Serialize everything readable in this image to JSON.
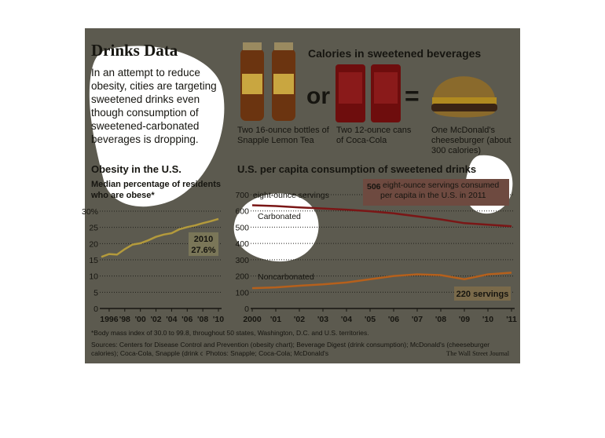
{
  "header": {
    "title": "Drinks Data",
    "intro": "In an attempt to reduce obesity, cities are targeting sweetened drinks even though consumption of sweetened-carbonated beverages is dropping."
  },
  "calories": {
    "title": "Calories in sweetened beverages",
    "or": "or",
    "equals": "=",
    "items": [
      {
        "caption": "Two 16-ounce bottles of Snapple Lemon Tea"
      },
      {
        "caption": "Two 12-ounce cans of Coca-Cola"
      },
      {
        "caption": "One McDonald's cheeseburger (about 300 calories)"
      }
    ]
  },
  "chart_data": [
    {
      "type": "line",
      "title": "Obesity in the U.S.",
      "subtitle": "Median percentage of residents who are obese*",
      "x": [
        1995,
        1996,
        1997,
        1998,
        1999,
        2000,
        2001,
        2002,
        2003,
        2004,
        2005,
        2006,
        2007,
        2008,
        2009,
        2010
      ],
      "series": [
        {
          "name": null,
          "color": "#b39a3c",
          "values": [
            15.9,
            16.8,
            16.6,
            18.3,
            19.7,
            20.1,
            21.0,
            22.1,
            22.8,
            23.2,
            24.4,
            25.1,
            25.6,
            26.3,
            26.9,
            27.6
          ]
        }
      ],
      "xlim": [
        1995,
        2010
      ],
      "xticks": [
        1996,
        {
          "value": 1998,
          "label": "'98"
        },
        {
          "value": 2000,
          "label": "'00"
        },
        {
          "value": 2002,
          "label": "'02"
        },
        {
          "value": 2004,
          "label": "'04"
        },
        {
          "value": 2006,
          "label": "'06"
        },
        {
          "value": 2008,
          "label": "'08"
        },
        {
          "value": 2010,
          "label": "'10"
        }
      ],
      "ylim": [
        0,
        30
      ],
      "yticks": [
        0,
        5,
        10,
        15,
        20,
        25,
        {
          "value": 30,
          "label": "30%"
        }
      ],
      "grid": true,
      "annotations": [
        "2010",
        "27.6%"
      ]
    },
    {
      "type": "line",
      "title": "U.S. per capita consumption of sweetened drinks",
      "y_unit": "eight-ounce servings",
      "x": [
        2000,
        2001,
        2002,
        2003,
        2004,
        2005,
        2006,
        2007,
        2008,
        2009,
        2010,
        2011
      ],
      "series": [
        {
          "name": "Carbonated",
          "color": "#7a1616",
          "values": [
            635,
            630,
            622,
            615,
            608,
            598,
            585,
            567,
            548,
            525,
            515,
            506
          ]
        },
        {
          "name": "Noncarbonated",
          "color": "#b5601c",
          "values": [
            125,
            130,
            140,
            148,
            160,
            180,
            200,
            210,
            205,
            180,
            210,
            220
          ]
        }
      ],
      "xlim": [
        2000,
        2011
      ],
      "xticks": [
        2000,
        {
          "value": 2001,
          "label": "'01"
        },
        {
          "value": 2002,
          "label": "'02"
        },
        {
          "value": 2003,
          "label": "'03"
        },
        {
          "value": 2004,
          "label": "'04"
        },
        {
          "value": 2005,
          "label": "'05"
        },
        {
          "value": 2006,
          "label": "'06"
        },
        {
          "value": 2007,
          "label": "'07"
        },
        {
          "value": 2008,
          "label": "'08"
        },
        {
          "value": 2009,
          "label": "'09"
        },
        {
          "value": 2010,
          "label": "'10"
        },
        {
          "value": 2011,
          "label": "'11"
        }
      ],
      "ylim": [
        0,
        700
      ],
      "yticks": [
        0,
        100,
        200,
        300,
        400,
        500,
        600,
        700
      ],
      "grid": true,
      "annotations": [
        "506",
        "eight-ounce servings consumed per capita in the U.S. in 2011",
        "220 servings"
      ]
    }
  ],
  "footer": {
    "note": "*Body mass index of 30.0 to 99.8, throughout 50 states, Washington, D.C. and U.S. territories.",
    "sources": "Sources: Centers for Disease Control and Prevention (obesity chart); Beverage Digest (drink consumption); McDonald's (cheeseburger calories); Coca-Cola, Snapple (drink calories)",
    "photos": "Photos: Snapple; Coca-Cola; McDonald's",
    "credit": "The Wall Street Journal"
  }
}
